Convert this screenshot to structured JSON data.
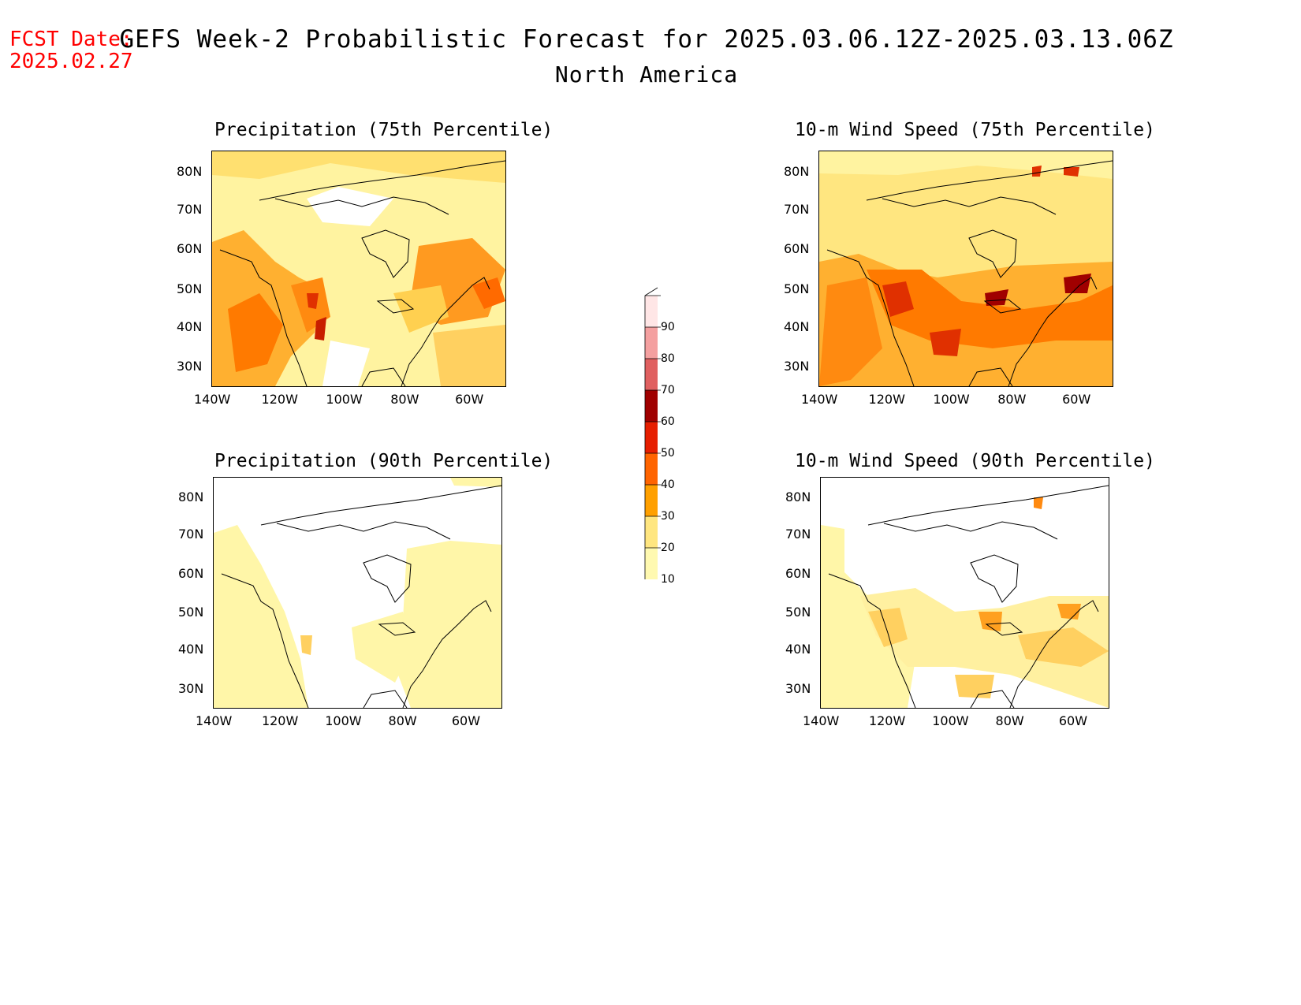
{
  "header": {
    "fcst_line1": "FCST Date:",
    "fcst_line2": "2025.02.27",
    "title": "GEFS Week-2 Probabilistic Forecast for 2025.03.06.12Z-2025.03.13.06Z",
    "subtitle": "North America"
  },
  "panels": [
    {
      "id": "precip75",
      "title": "Precipitation (75th Percentile)"
    },
    {
      "id": "wind75",
      "title": "10-m Wind Speed (75th Percentile)"
    },
    {
      "id": "precip90",
      "title": "Precipitation (90th Percentile)"
    },
    {
      "id": "wind90",
      "title": "10-m Wind Speed (90th Percentile)"
    }
  ],
  "lat_labels": [
    "80N",
    "70N",
    "60N",
    "50N",
    "40N",
    "30N"
  ],
  "lon_labels": [
    "140W",
    "120W",
    "100W",
    "80W",
    "60W"
  ],
  "colorbar": {
    "levels": [
      "10",
      "20",
      "30",
      "40",
      "50",
      "60",
      "70",
      "80",
      "90"
    ],
    "colors": [
      "#fff9b0",
      "#ffe680",
      "#ffa000",
      "#ff6400",
      "#e61e00",
      "#a00000",
      "#e06060",
      "#f4a0a0",
      "#ffe6e6"
    ]
  }
}
